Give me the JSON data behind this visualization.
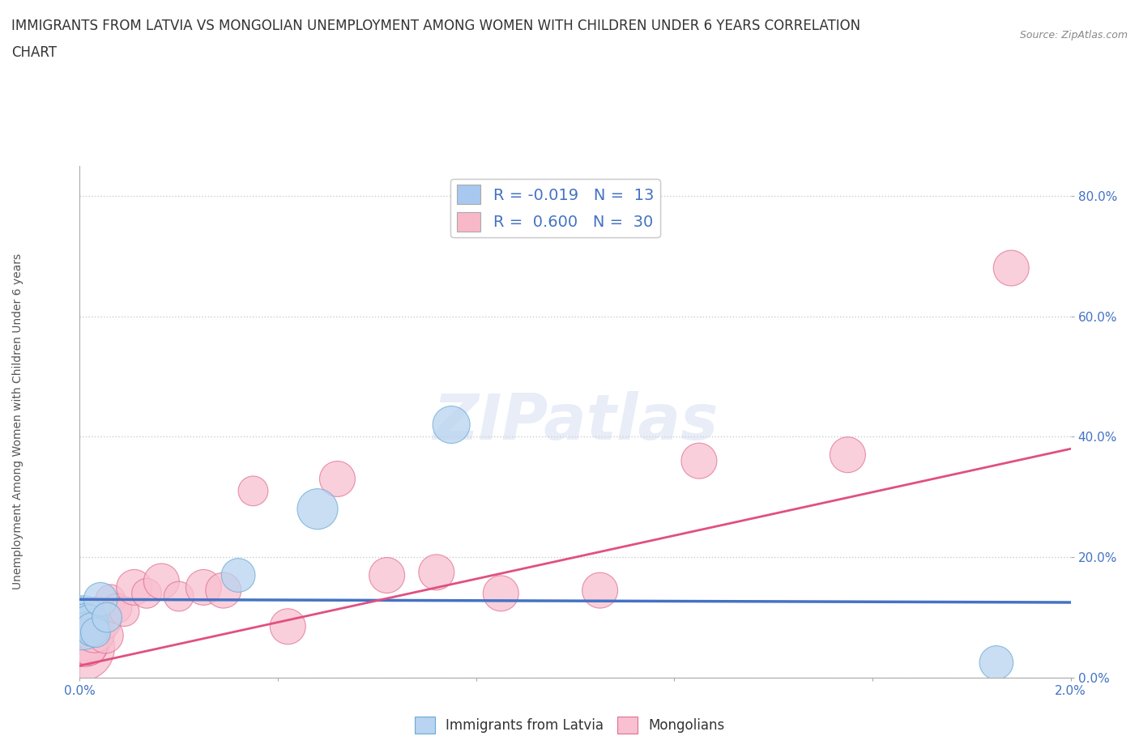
{
  "title_line1": "IMMIGRANTS FROM LATVIA VS MONGOLIAN UNEMPLOYMENT AMONG WOMEN WITH CHILDREN UNDER 6 YEARS CORRELATION",
  "title_line2": "CHART",
  "source": "Source: ZipAtlas.com",
  "ylabel": "Unemployment Among Women with Children Under 6 years",
  "xlim": [
    0.0,
    0.02
  ],
  "ylim": [
    0.0,
    0.85
  ],
  "xticks": [
    0.0,
    0.004,
    0.008,
    0.012,
    0.016,
    0.02
  ],
  "xticklabels": [
    "0.0%",
    "",
    "",
    "",
    "",
    "2.0%"
  ],
  "yticks": [
    0.0,
    0.2,
    0.4,
    0.6,
    0.8
  ],
  "yticklabels": [
    "0.0%",
    "20.0%",
    "40.0%",
    "60.0%",
    "80.0%"
  ],
  "watermark": "ZIPatlas",
  "legend_entries": [
    {
      "label": "R = -0.019   N =  13",
      "color": "#a8c8f0"
    },
    {
      "label": "R =  0.600   N =  30",
      "color": "#f9b8c8"
    }
  ],
  "latvia_scatter": {
    "x": [
      5e-05,
      8e-05,
      0.00012,
      0.00016,
      0.0002,
      0.00025,
      0.00032,
      0.00042,
      0.00055,
      0.0032,
      0.0048,
      0.0075,
      0.0185
    ],
    "y": [
      0.09,
      0.1,
      0.095,
      0.085,
      0.09,
      0.08,
      0.075,
      0.13,
      0.1,
      0.17,
      0.28,
      0.42,
      0.025
    ],
    "sizes": [
      2200,
      1500,
      900,
      700,
      1100,
      900,
      700,
      900,
      700,
      900,
      1300,
      1100,
      900
    ],
    "color": "#b8d4f0",
    "edgecolor": "#6aaad4",
    "alpha": 0.75
  },
  "mongolian_scatter": {
    "x": [
      3e-05,
      6e-05,
      9e-05,
      0.00012,
      0.00015,
      0.00019,
      0.00024,
      0.0003,
      0.00036,
      0.00043,
      0.00052,
      0.00062,
      0.00075,
      0.0009,
      0.0011,
      0.00135,
      0.00165,
      0.002,
      0.0025,
      0.0029,
      0.0035,
      0.0042,
      0.0052,
      0.0062,
      0.0072,
      0.0085,
      0.0105,
      0.0125,
      0.0155,
      0.0188
    ],
    "y": [
      0.05,
      0.075,
      0.06,
      0.065,
      0.055,
      0.05,
      0.085,
      0.075,
      0.105,
      0.095,
      0.07,
      0.13,
      0.115,
      0.11,
      0.15,
      0.14,
      0.16,
      0.135,
      0.15,
      0.145,
      0.31,
      0.085,
      0.33,
      0.17,
      0.175,
      0.14,
      0.145,
      0.36,
      0.37,
      0.68
    ],
    "sizes": [
      3500,
      2500,
      2000,
      1600,
      1300,
      1000,
      1000,
      1300,
      1000,
      1300,
      1000,
      700,
      700,
      700,
      1000,
      700,
      1000,
      700,
      1000,
      1000,
      700,
      1000,
      1000,
      1000,
      1000,
      1000,
      1000,
      1000,
      1000,
      1000
    ],
    "color": "#f8c0d0",
    "edgecolor": "#e07090",
    "alpha": 0.75
  },
  "latvia_trendline": {
    "x": [
      0.0,
      0.02
    ],
    "y": [
      0.13,
      0.125
    ],
    "color": "#4472c4",
    "linewidth": 2.5,
    "linestyle": "solid"
  },
  "mongolian_trendline": {
    "x": [
      0.0,
      0.02
    ],
    "y": [
      0.02,
      0.38
    ],
    "color": "#e05080",
    "linewidth": 2.0,
    "linestyle": "solid"
  },
  "grid_color": "#cccccc",
  "background_color": "#ffffff",
  "title_fontsize": 12,
  "axis_label_fontsize": 10,
  "tick_fontsize": 11,
  "tick_color": "#4472c4",
  "title_color": "#333333"
}
